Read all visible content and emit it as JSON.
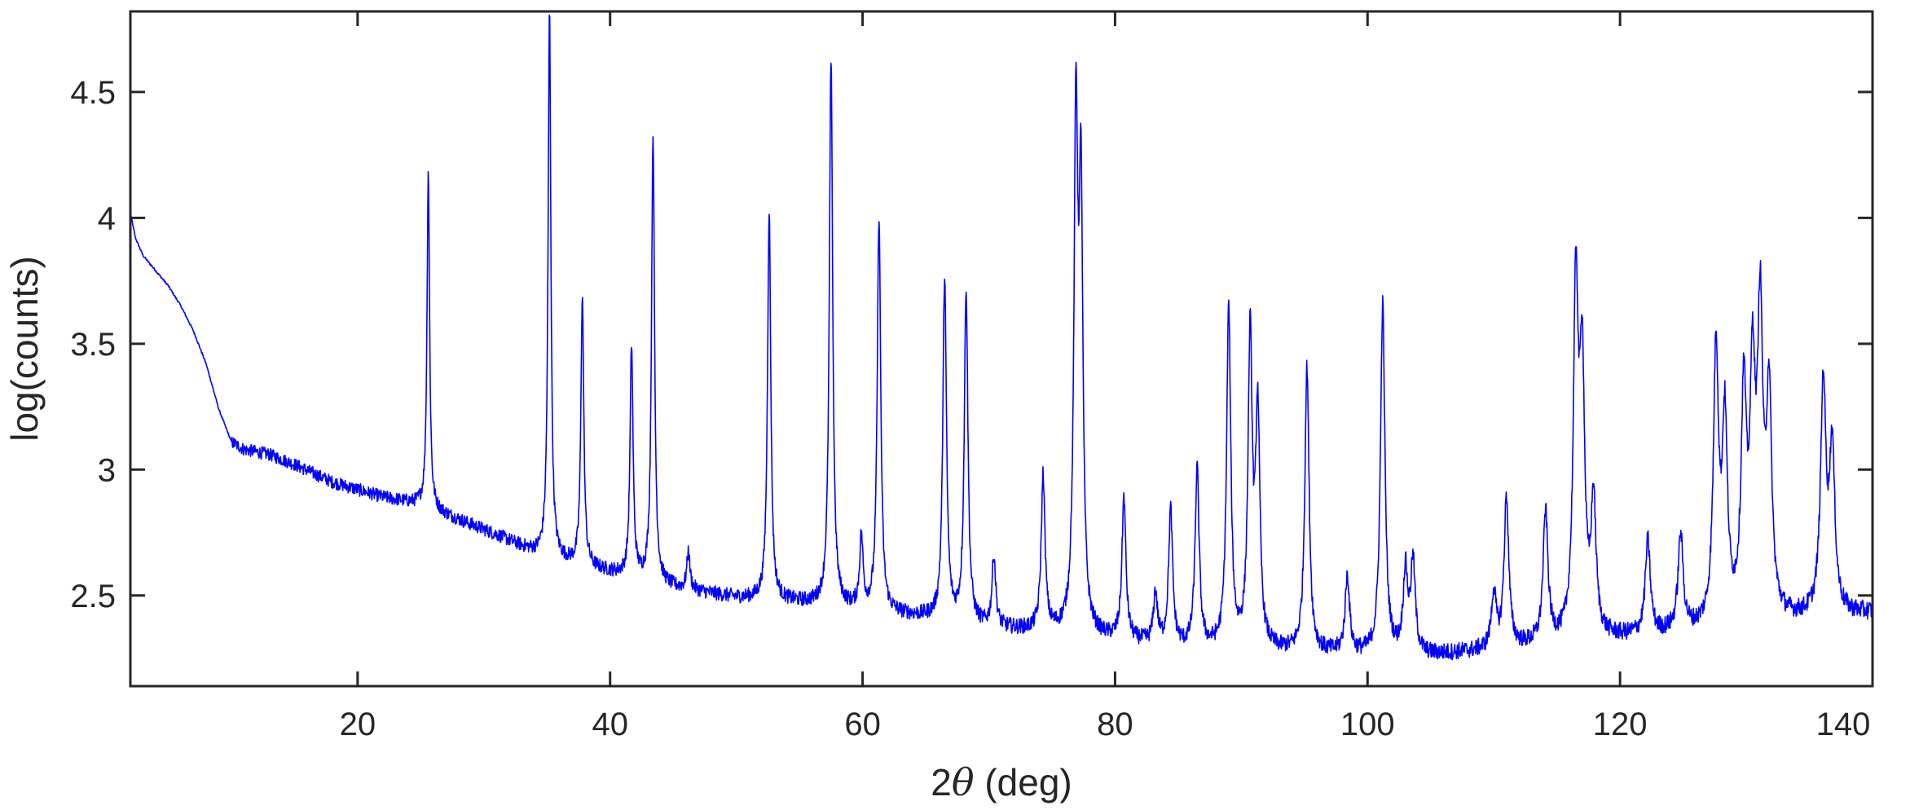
{
  "chart_data": {
    "type": "line",
    "title": "",
    "xlabel_prefix": "2",
    "xlabel_symbol": "θ",
    "xlabel_suffix": " (deg)",
    "ylabel": "log(counts)",
    "xlim": [
      2,
      140
    ],
    "ylim": [
      2.14,
      4.82
    ],
    "x_ticks": [
      20,
      40,
      60,
      80,
      100,
      120,
      140
    ],
    "x_tick_labels": [
      "20",
      "40",
      "60",
      "80",
      "100",
      "120",
      "140"
    ],
    "y_ticks": [
      2.5,
      3,
      3.5,
      4,
      4.5
    ],
    "y_tick_labels": [
      "2.5",
      "3",
      "3.5",
      "4",
      "4.5"
    ],
    "grid": false,
    "legend": "none",
    "line_color": "#0000ff",
    "axis_color": "#262626",
    "background": [
      [
        2,
        4.02
      ],
      [
        2.4,
        3.92
      ],
      [
        3,
        3.85
      ],
      [
        4,
        3.79
      ],
      [
        5,
        3.73
      ],
      [
        6,
        3.65
      ],
      [
        7,
        3.55
      ],
      [
        8,
        3.42
      ],
      [
        9,
        3.24
      ],
      [
        10,
        3.11
      ],
      [
        11,
        3.08
      ],
      [
        13,
        3.06
      ],
      [
        15,
        3.02
      ],
      [
        18,
        2.95
      ],
      [
        22,
        2.89
      ],
      [
        25,
        2.86
      ],
      [
        28,
        2.8
      ],
      [
        31,
        2.74
      ],
      [
        34,
        2.67
      ],
      [
        36,
        2.64
      ],
      [
        40,
        2.59
      ],
      [
        45,
        2.53
      ],
      [
        50,
        2.49
      ],
      [
        55,
        2.47
      ],
      [
        60,
        2.44
      ],
      [
        65,
        2.41
      ],
      [
        70,
        2.37
      ],
      [
        75,
        2.35
      ],
      [
        80,
        2.32
      ],
      [
        85,
        2.29
      ],
      [
        90,
        2.28
      ],
      [
        95,
        2.27
      ],
      [
        100,
        2.26
      ],
      [
        105,
        2.26
      ],
      [
        110,
        2.28
      ],
      [
        115,
        2.31
      ],
      [
        120,
        2.33
      ],
      [
        125,
        2.35
      ],
      [
        130,
        2.38
      ],
      [
        135,
        2.41
      ],
      [
        140,
        2.43
      ]
    ],
    "peaks": [
      {
        "x": 25.6,
        "y": 4.19
      },
      {
        "x": 35.2,
        "y": 4.82
      },
      {
        "x": 37.8,
        "y": 3.69
      },
      {
        "x": 41.7,
        "y": 3.49
      },
      {
        "x": 43.4,
        "y": 4.33
      },
      {
        "x": 46.2,
        "y": 2.67
      },
      {
        "x": 52.6,
        "y": 4.03
      },
      {
        "x": 57.5,
        "y": 4.62
      },
      {
        "x": 59.9,
        "y": 2.72
      },
      {
        "x": 61.3,
        "y": 4.0
      },
      {
        "x": 66.5,
        "y": 3.76
      },
      {
        "x": 68.2,
        "y": 3.71
      },
      {
        "x": 70.4,
        "y": 2.65
      },
      {
        "x": 74.3,
        "y": 2.97
      },
      {
        "x": 76.9,
        "y": 4.32
      },
      {
        "x": 77.3,
        "y": 4.0
      },
      {
        "x": 80.7,
        "y": 2.88
      },
      {
        "x": 83.2,
        "y": 2.5
      },
      {
        "x": 84.4,
        "y": 2.83
      },
      {
        "x": 86.5,
        "y": 2.99
      },
      {
        "x": 89.0,
        "y": 3.63
      },
      {
        "x": 90.7,
        "y": 3.5
      },
      {
        "x": 91.3,
        "y": 3.2
      },
      {
        "x": 95.2,
        "y": 3.4
      },
      {
        "x": 98.4,
        "y": 2.57
      },
      {
        "x": 101.2,
        "y": 3.65
      },
      {
        "x": 103.0,
        "y": 2.58
      },
      {
        "x": 103.6,
        "y": 2.62
      },
      {
        "x": 110.0,
        "y": 2.5
      },
      {
        "x": 111.0,
        "y": 2.88
      },
      {
        "x": 114.1,
        "y": 2.82
      },
      {
        "x": 116.5,
        "y": 3.7
      },
      {
        "x": 117.0,
        "y": 3.35
      },
      {
        "x": 117.9,
        "y": 2.85
      },
      {
        "x": 122.2,
        "y": 2.71
      },
      {
        "x": 124.8,
        "y": 2.73
      },
      {
        "x": 127.6,
        "y": 3.45
      },
      {
        "x": 128.3,
        "y": 3.15
      },
      {
        "x": 129.8,
        "y": 3.26
      },
      {
        "x": 130.5,
        "y": 3.29
      },
      {
        "x": 131.1,
        "y": 3.54
      },
      {
        "x": 131.8,
        "y": 3.26
      },
      {
        "x": 136.1,
        "y": 3.32
      },
      {
        "x": 136.8,
        "y": 3.06
      }
    ]
  }
}
